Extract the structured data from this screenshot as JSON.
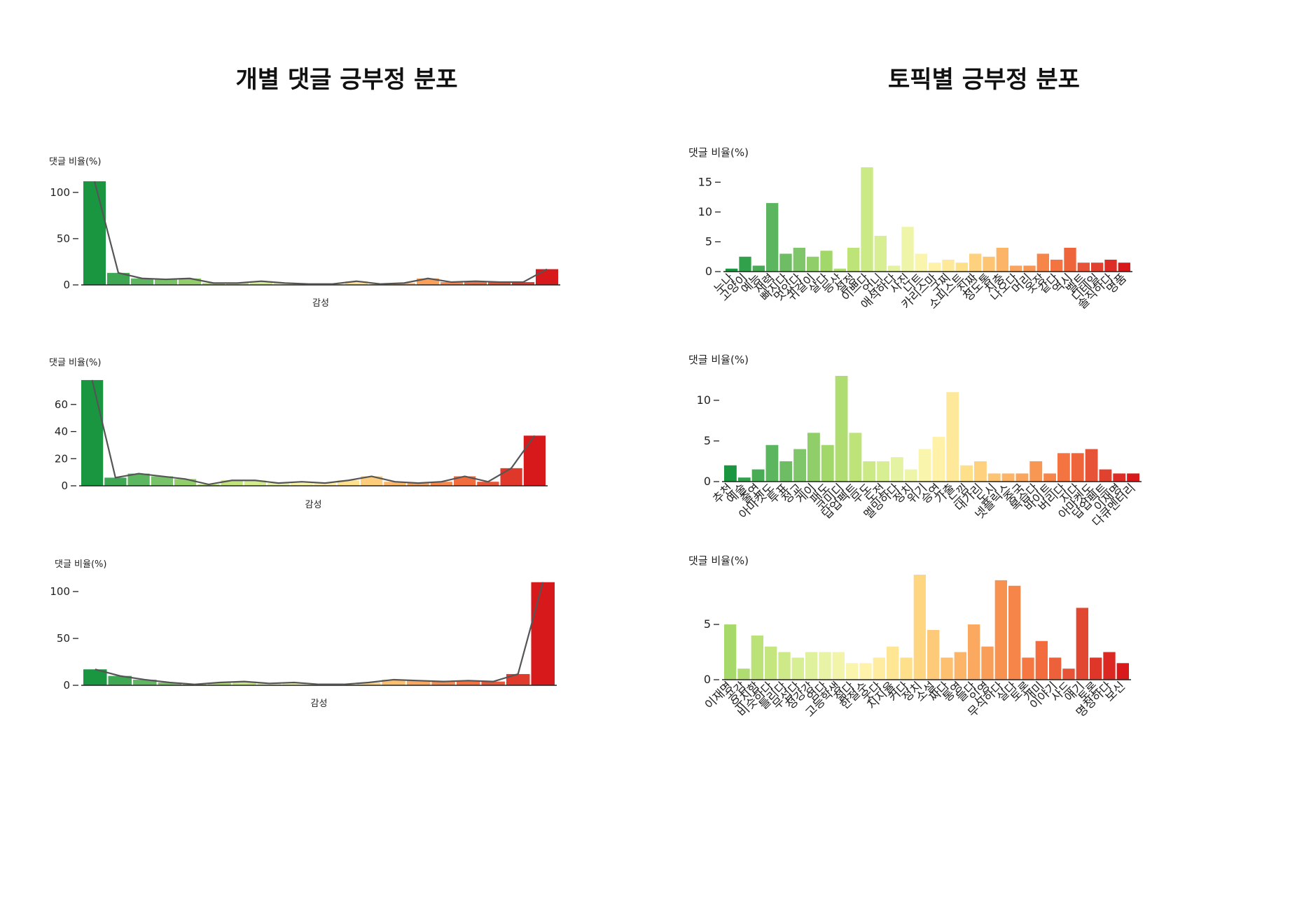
{
  "titles": {
    "left": "개별 댓글 긍부정 분포",
    "right": "토픽별 긍부정 분포"
  },
  "colors": {
    "sentiment_scale": [
      "#1a9641",
      "#52b15c",
      "#7cc46a",
      "#a6d96a",
      "#c7e77f",
      "#e4f3a3",
      "#fff5b0",
      "#fee08b",
      "#fdbf6f",
      "#f99a55",
      "#f4713f",
      "#e34a33",
      "#d7191c"
    ],
    "line": "#555555",
    "axis": "#222222"
  },
  "chart_data": [
    {
      "id": "individual-1",
      "type": "bar",
      "ylabel": "댓글 비율(%)",
      "xlabel": "감성",
      "yticks": [
        0,
        50,
        100
      ],
      "ylim": [
        0,
        115
      ],
      "values": [
        112,
        13,
        7,
        6,
        7,
        2,
        2,
        4,
        2,
        1,
        1,
        4,
        1,
        2,
        7,
        3,
        4,
        3,
        3,
        17
      ],
      "line_values": [
        112,
        13,
        7,
        6,
        7,
        2,
        2,
        4,
        2,
        1,
        1,
        4,
        1,
        2,
        7,
        3,
        4,
        3,
        3,
        17
      ],
      "color_start": 0.0,
      "color_end": 1.0
    },
    {
      "id": "individual-2",
      "type": "bar",
      "ylabel": "댓글 비율(%)",
      "xlabel": "감성",
      "yticks": [
        0,
        20,
        40,
        60
      ],
      "ylim": [
        0,
        79
      ],
      "values": [
        78,
        6,
        9,
        7,
        5,
        1,
        4,
        4,
        2,
        3,
        2,
        4,
        7,
        3,
        2,
        3,
        7,
        3,
        13,
        37
      ],
      "line_values": [
        78,
        6,
        9,
        7,
        5,
        1,
        4,
        4,
        2,
        3,
        2,
        4,
        7,
        3,
        2,
        3,
        7,
        3,
        13,
        37
      ],
      "color_start": 0.0,
      "color_end": 1.0
    },
    {
      "id": "individual-3",
      "type": "bar",
      "ylabel": "댓글 비율(%)",
      "xlabel": "감성",
      "yticks": [
        0,
        50,
        100
      ],
      "ylim": [
        0,
        115
      ],
      "values": [
        17,
        10,
        6,
        3,
        1,
        3,
        4,
        2,
        3,
        1,
        1,
        3,
        6,
        5,
        4,
        5,
        4,
        12,
        110
      ],
      "line_values": [
        17,
        10,
        6,
        3,
        1,
        3,
        4,
        2,
        3,
        1,
        1,
        3,
        6,
        5,
        4,
        5,
        4,
        12,
        110
      ],
      "color_start": 0.0,
      "color_end": 1.0
    },
    {
      "id": "topic-1",
      "type": "bar",
      "ylabel": "댓글 비율(%)",
      "yticks": [
        0,
        5,
        10,
        15
      ],
      "ylim": [
        0,
        17.5
      ],
      "categories": [
        "누나",
        "고양이",
        "예능",
        "재력",
        "빠지다",
        "멋있다",
        "귀걸이",
        "살다",
        "등산",
        "설정",
        "이쁘다",
        "언니",
        "애석하다",
        "사진",
        "니트",
        "카리스마",
        "구찌",
        "소피스트",
        "진짜",
        "정도통",
        "치충",
        "나오다",
        "머리",
        "옷장",
        "같다",
        "역시",
        "벨트",
        "디테일",
        "솔직하다",
        "명품"
      ],
      "values": [
        0.5,
        2.5,
        1,
        11.5,
        3,
        4,
        2.5,
        3.5,
        0.5,
        4,
        17.5,
        6,
        1,
        7.5,
        3,
        1.5,
        2,
        1.5,
        3,
        2.5,
        4,
        1,
        1,
        3,
        2,
        4,
        1.5,
        1.5,
        2,
        1.5
      ],
      "color_start": 0.0,
      "color_end": 1.0
    },
    {
      "id": "topic-2",
      "type": "bar",
      "ylabel": "댓글 비율(%)",
      "yticks": [
        0,
        5,
        10
      ],
      "ylim": [
        0,
        13
      ],
      "categories": [
        "추천",
        "예술",
        "출연",
        "아마켓도",
        "투표",
        "정교",
        "게이",
        "패도",
        "코미디",
        "답업펙트",
        "무도",
        "도전",
        "멜밍하다",
        "정치",
        "위기",
        "승연",
        "가출",
        "느낌",
        "대가리",
        "도시",
        "넷플릭스",
        "중국",
        "복습다",
        "바이트",
        "버리다",
        "지다",
        "아마켓도",
        "답업펙트",
        "이재명",
        "다큐멘터리"
      ],
      "values": [
        2,
        0.5,
        1.5,
        4.5,
        2.5,
        4,
        6,
        4.5,
        13,
        6,
        2.5,
        2.5,
        3,
        1.5,
        4,
        5.5,
        11,
        2,
        2.5,
        1,
        1,
        1,
        2.5,
        1,
        3.5,
        3.5,
        4,
        1.5,
        1,
        1
      ],
      "color_start": 0.0,
      "color_end": 1.0
    },
    {
      "id": "topic-3",
      "type": "bar",
      "ylabel": "댓글 비율(%)",
      "yticks": [
        0,
        5
      ],
      "ylim": [
        0,
        9.5
      ],
      "categories": [
        "이재명",
        "공감",
        "유치함",
        "비슷하다",
        "틀리다",
        "무섭다",
        "정강강",
        "엄다",
        "고등학생",
        "젊다",
        "한절수",
        "웃다",
        "지지율",
        "커다",
        "정치",
        "소설",
        "짜다",
        "통영",
        "들다",
        "인영",
        "무식하다",
        "실다",
        "토론",
        "개미",
        "이야기",
        "사드",
        "얘기",
        "토론",
        "명청하다",
        "보신"
      ],
      "values": [
        5,
        1,
        4,
        3,
        2.5,
        2,
        2.5,
        2.5,
        2.5,
        1.5,
        1.5,
        2,
        3,
        2,
        9.5,
        4.5,
        2,
        2.5,
        5,
        3,
        9,
        8.5,
        2,
        3.5,
        2,
        1,
        6.5,
        2,
        2.5,
        1.5
      ],
      "color_start": 0.25,
      "color_end": 1.0
    }
  ]
}
